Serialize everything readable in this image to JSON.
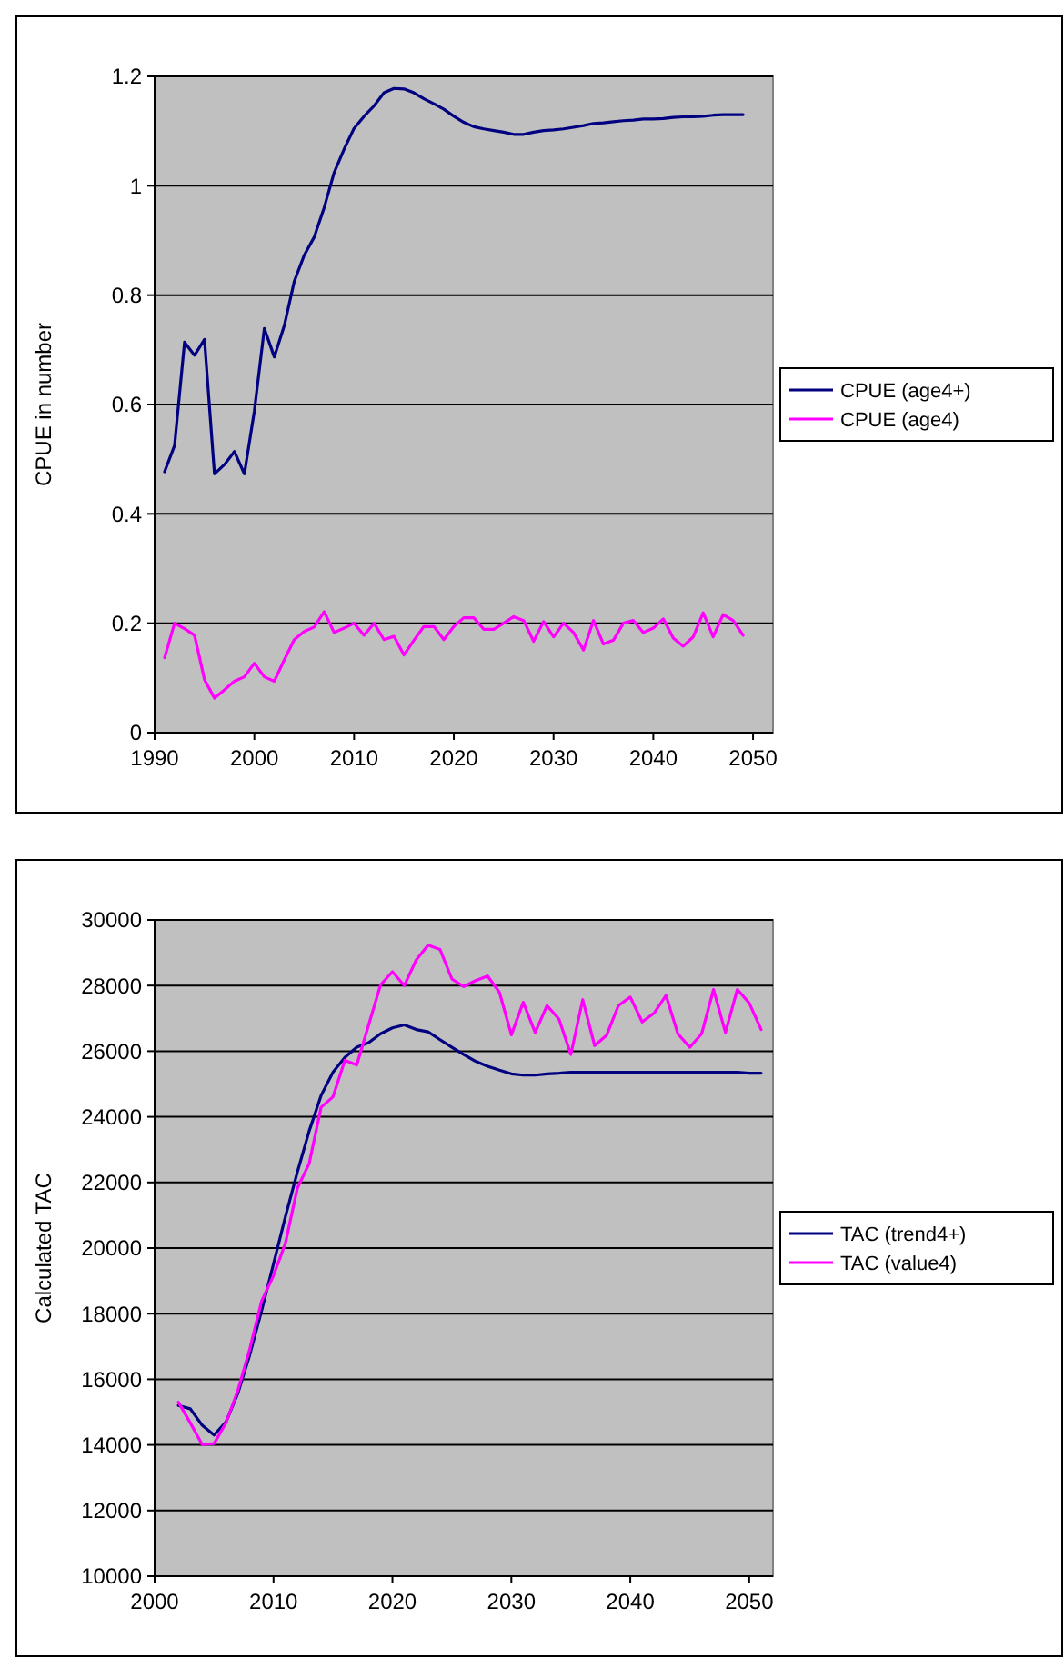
{
  "chart_data": [
    {
      "type": "line",
      "ylabel": "CPUE in number",
      "x": [
        1991,
        1992,
        1993,
        1994,
        1995,
        1996,
        1997,
        1998,
        1999,
        2000,
        2001,
        2002,
        2003,
        2004,
        2005,
        2006,
        2007,
        2008,
        2009,
        2010,
        2011,
        2012,
        2013,
        2014,
        2015,
        2016,
        2017,
        2018,
        2019,
        2020,
        2021,
        2022,
        2023,
        2024,
        2025,
        2026,
        2027,
        2028,
        2029,
        2030,
        2031,
        2032,
        2033,
        2034,
        2035,
        2036,
        2037,
        2038,
        2039,
        2040,
        2041,
        2042,
        2043,
        2044,
        2045,
        2046,
        2047,
        2048,
        2049
      ],
      "xlim": [
        1990,
        2052
      ],
      "xticks": [
        1990,
        2000,
        2010,
        2020,
        2030,
        2040,
        2050
      ],
      "ylim": [
        0,
        1.2
      ],
      "yticks": [
        0,
        0.2,
        0.4,
        0.6,
        0.8,
        1,
        1.2
      ],
      "grid": "y",
      "legend": "right",
      "line_style": "solid",
      "series": [
        {
          "name": "CPUE (age4+)",
          "color": "#000080",
          "values": [
            0.477,
            0.525,
            0.714,
            0.69,
            0.719,
            0.473,
            0.49,
            0.514,
            0.473,
            0.588,
            0.739,
            0.687,
            0.744,
            0.825,
            0.873,
            0.906,
            0.96,
            1.024,
            1.067,
            1.105,
            1.127,
            1.146,
            1.17,
            1.178,
            1.177,
            1.17,
            1.159,
            1.15,
            1.14,
            1.127,
            1.116,
            1.108,
            1.104,
            1.101,
            1.098,
            1.094,
            1.094,
            1.098,
            1.101,
            1.102,
            1.104,
            1.107,
            1.11,
            1.114,
            1.115,
            1.117,
            1.119,
            1.12,
            1.122,
            1.122,
            1.123,
            1.125,
            1.126,
            1.126,
            1.127,
            1.129,
            1.13,
            1.13,
            1.13
          ]
        },
        {
          "name": "CPUE (age4)",
          "color": "#ff00ff",
          "values": [
            0.137,
            0.2,
            0.19,
            0.178,
            0.097,
            0.063,
            0.078,
            0.094,
            0.102,
            0.127,
            0.102,
            0.094,
            0.133,
            0.17,
            0.185,
            0.193,
            0.221,
            0.183,
            0.191,
            0.2,
            0.178,
            0.2,
            0.17,
            0.176,
            0.142,
            0.169,
            0.194,
            0.194,
            0.17,
            0.194,
            0.21,
            0.21,
            0.189,
            0.189,
            0.2,
            0.212,
            0.205,
            0.167,
            0.203,
            0.175,
            0.2,
            0.183,
            0.151,
            0.205,
            0.162,
            0.169,
            0.2,
            0.205,
            0.183,
            0.191,
            0.208,
            0.173,
            0.158,
            0.175,
            0.219,
            0.175,
            0.216,
            0.205,
            0.178
          ]
        }
      ]
    },
    {
      "type": "line",
      "ylabel": "Calculated TAC",
      "x": [
        2002,
        2003,
        2004,
        2005,
        2006,
        2007,
        2008,
        2009,
        2010,
        2011,
        2012,
        2013,
        2014,
        2015,
        2016,
        2017,
        2018,
        2019,
        2020,
        2021,
        2022,
        2023,
        2024,
        2025,
        2026,
        2027,
        2028,
        2029,
        2030,
        2031,
        2032,
        2033,
        2034,
        2035,
        2036,
        2037,
        2038,
        2039,
        2040,
        2041,
        2042,
        2043,
        2044,
        2045,
        2046,
        2047,
        2048,
        2049,
        2050,
        2051
      ],
      "xlim": [
        2000,
        2052
      ],
      "xticks": [
        2000,
        2010,
        2020,
        2030,
        2040,
        2050
      ],
      "ylim": [
        10000,
        30000
      ],
      "yticks": [
        10000,
        12000,
        14000,
        16000,
        18000,
        20000,
        22000,
        24000,
        26000,
        28000,
        30000
      ],
      "grid": "y",
      "legend": "right",
      "line_style": "solid",
      "series": [
        {
          "name": "TAC (trend4+)",
          "color": "#000080",
          "values": [
            15200,
            15100,
            14600,
            14300,
            14700,
            15570,
            16740,
            18090,
            19520,
            20960,
            22310,
            23570,
            24650,
            25360,
            25810,
            26120,
            26260,
            26530,
            26710,
            26800,
            26660,
            26590,
            26350,
            26120,
            25900,
            25690,
            25540,
            25420,
            25310,
            25270,
            25270,
            25310,
            25330,
            25360,
            25360,
            25360,
            25360,
            25360,
            25360,
            25360,
            25360,
            25360,
            25360,
            25360,
            25360,
            25360,
            25360,
            25360,
            25330,
            25330
          ]
        },
        {
          "name": "TAC (value4)",
          "color": "#ff00ff",
          "values": [
            15300,
            14670,
            14010,
            14040,
            14670,
            15660,
            16920,
            18390,
            19160,
            20150,
            21820,
            22580,
            24290,
            24610,
            25720,
            25580,
            26800,
            28020,
            28420,
            28000,
            28780,
            29230,
            29100,
            28200,
            27970,
            28150,
            28290,
            27790,
            26500,
            27490,
            26570,
            27390,
            26980,
            25900,
            27570,
            26170,
            26480,
            27390,
            27650,
            26890,
            27160,
            27700,
            26530,
            26120,
            26530,
            27880,
            26570,
            27880,
            27470,
            26660
          ]
        }
      ]
    }
  ]
}
